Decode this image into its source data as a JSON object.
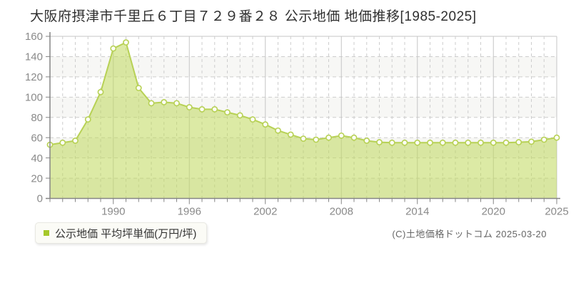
{
  "header": {
    "title": "大阪府摂津市千里丘６丁目７２９番２８ 公示地価 地価推移[1985-2025]"
  },
  "legend": {
    "label": "公示地価 平均坪単価(万円/坪)",
    "marker_color": "#a5c82a"
  },
  "footer": {
    "copyright": "(C)土地価格ドットコム 2025-03-20"
  },
  "chart_data": {
    "type": "area",
    "title": "大阪府摂津市千里丘６丁目７２９番２８ 公示地価 地価推移[1985-2025]",
    "xlabel": "",
    "ylabel": "平均坪単価(万円/坪)",
    "x": [
      1985,
      1986,
      1987,
      1988,
      1989,
      1990,
      1991,
      1992,
      1993,
      1994,
      1995,
      1996,
      1997,
      1998,
      1999,
      2000,
      2001,
      2002,
      2003,
      2004,
      2005,
      2006,
      2007,
      2008,
      2009,
      2010,
      2011,
      2012,
      2013,
      2014,
      2015,
      2016,
      2017,
      2018,
      2019,
      2020,
      2021,
      2022,
      2023,
      2024,
      2025
    ],
    "series": [
      {
        "name": "公示地価 平均坪単価(万円/坪)",
        "values": [
          53,
          55,
          57,
          78,
          105,
          148,
          154,
          109,
          94,
          95,
          94,
          90,
          88,
          88,
          85,
          82,
          78,
          73,
          67,
          63,
          59,
          58,
          60,
          62,
          60,
          57,
          55.5,
          55,
          55,
          55,
          55,
          55,
          55,
          55,
          55,
          55,
          55,
          55.5,
          56,
          58,
          60
        ]
      }
    ],
    "ylim": [
      0,
      160
    ],
    "ytick_step": 20,
    "xticks_labeled": [
      1990,
      1996,
      2002,
      2008,
      2014,
      2020,
      2025
    ],
    "grid": true,
    "legend_position": "bottom-left",
    "colors": {
      "line": "#b7d155",
      "fill": "rgba(191,216,91,0.55)",
      "marker_fill": "#fdfdf6",
      "band": "#f7f7f5",
      "grid_dashed": "#cdcdcd",
      "grid_solid": "#c6c6c6",
      "axis": "#858585",
      "tick_label": "#8a8a8a"
    }
  }
}
